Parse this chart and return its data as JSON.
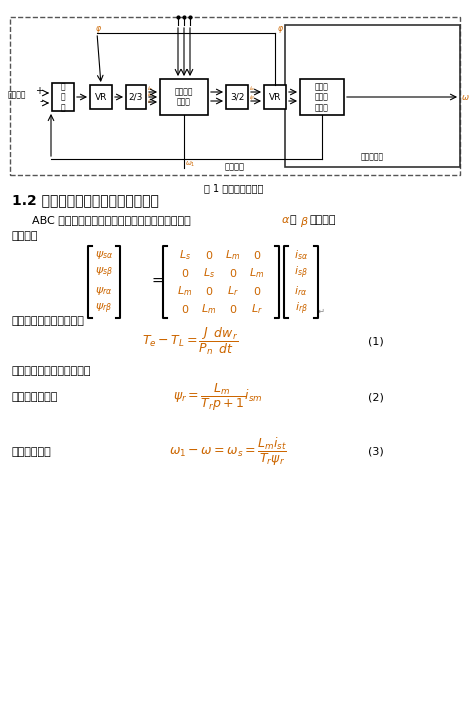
{
  "fig_caption": "图 1 矢量控制原理图",
  "section_title": "1.2 异步电动机动态数学模型的建立",
  "para1_part1": "ABC 三相坐标系的磁链方程经坐标变换简化为以下",
  "para1_part2": "坐标系磁",
  "para1_cont": "链方程：",
  "motor_eq_label": "电动机的运动方程式为：",
  "eq1_label": "(1)",
  "eq2_label": "(2)",
  "eq3_label": "(3)",
  "flux_orient_label": "磁链定向中控制方程还有：",
  "rotor_flux_label": "转子磁链方程：",
  "slip_label": "转差率方程：",
  "bg_color": "#ffffff",
  "text_color": "#000000",
  "math_color": "#cc6600"
}
